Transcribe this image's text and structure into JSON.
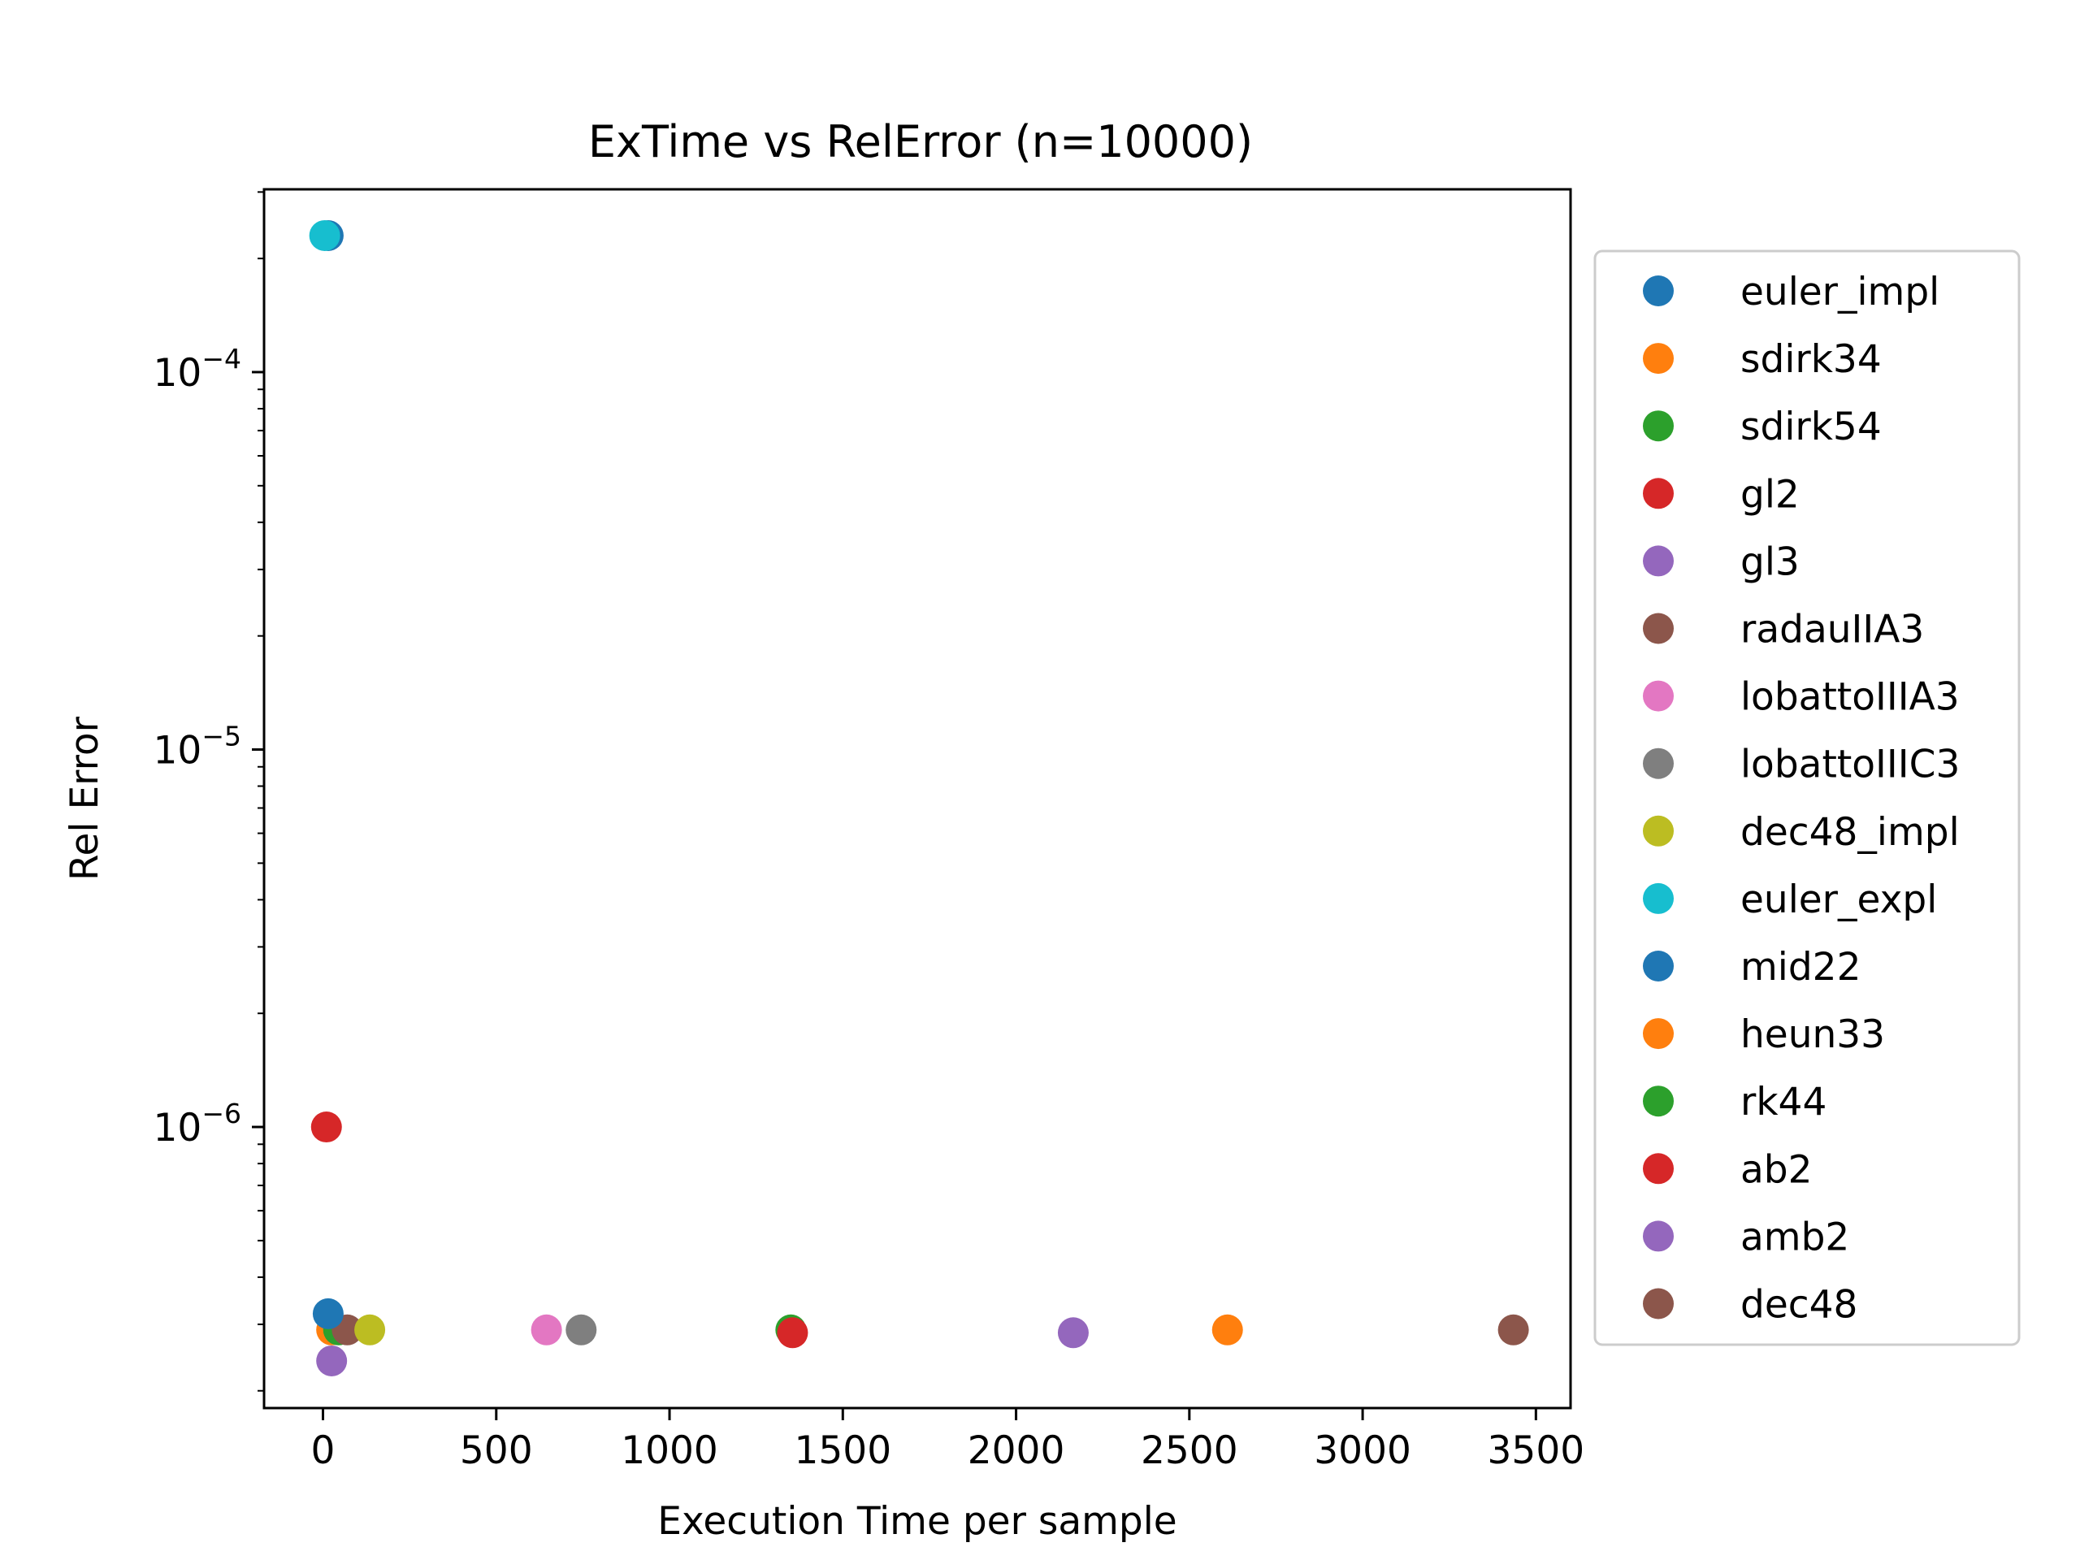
{
  "chart_data": {
    "type": "scatter",
    "title": "ExTime vs RelError (n=10000)",
    "xlabel": "Execution Time  per sample",
    "ylabel": "Rel Error",
    "xscale": "linear",
    "yscale": "log",
    "xlim": [
      -170,
      3600
    ],
    "ylim": [
      1.8e-07,
      0.000305
    ],
    "xticks": [
      0,
      500,
      1000,
      1500,
      2000,
      2500,
      3000,
      3500
    ],
    "xtick_labels": [
      "0",
      "500",
      "1000",
      "1500",
      "2000",
      "2500",
      "3000",
      "3500"
    ],
    "yticks": [
      1e-06,
      1e-05,
      0.0001
    ],
    "ytick_labels": [
      {
        "base": "10",
        "exp": "−6"
      },
      {
        "base": "10",
        "exp": "−5"
      },
      {
        "base": "10",
        "exp": "−4"
      }
    ],
    "grid": false,
    "legend_position": "right, outside plot",
    "series": [
      {
        "name": "euler_impl",
        "color": "#1f77b4",
        "points": [
          [
            15,
            0.00023
          ]
        ]
      },
      {
        "name": "sdirk34",
        "color": "#ff7f0e",
        "points": [
          [
            25,
            2.9e-07
          ]
        ]
      },
      {
        "name": "sdirk54",
        "color": "#2ca02c",
        "points": [
          [
            45,
            2.9e-07
          ]
        ]
      },
      {
        "name": "gl2",
        "color": "#d62728",
        "points": [
          [
            10,
            1e-06
          ]
        ]
      },
      {
        "name": "gl3",
        "color": "#9467bd",
        "points": [
          [
            25,
            2.4e-07
          ]
        ]
      },
      {
        "name": "radauIIA3",
        "color": "#8c564b",
        "points": [
          [
            70,
            2.9e-07
          ]
        ]
      },
      {
        "name": "lobattoIIIA3",
        "color": "#e377c2",
        "points": [
          [
            645,
            2.9e-07
          ]
        ]
      },
      {
        "name": "lobattoIIIC3",
        "color": "#7f7f7f",
        "points": [
          [
            745,
            2.9e-07
          ]
        ]
      },
      {
        "name": "dec48_impl",
        "color": "#bcbd22",
        "points": [
          [
            135,
            2.9e-07
          ]
        ]
      },
      {
        "name": "euler_expl",
        "color": "#17becf",
        "points": [
          [
            5,
            0.00023
          ]
        ]
      },
      {
        "name": "mid22",
        "color": "#1f77b4",
        "points": [
          [
            15,
            3.2e-07
          ]
        ]
      },
      {
        "name": "heun33",
        "color": "#ff7f0e",
        "points": [
          [
            2610,
            2.9e-07
          ]
        ]
      },
      {
        "name": "rk44",
        "color": "#2ca02c",
        "points": [
          [
            1350,
            2.9e-07
          ]
        ]
      },
      {
        "name": "ab2",
        "color": "#d62728",
        "points": [
          [
            1355,
            2.85e-07
          ]
        ]
      },
      {
        "name": "amb2",
        "color": "#9467bd",
        "points": [
          [
            2165,
            2.85e-07
          ]
        ]
      },
      {
        "name": "dec48",
        "color": "#8c564b",
        "points": [
          [
            3435,
            2.9e-07
          ]
        ]
      }
    ]
  }
}
